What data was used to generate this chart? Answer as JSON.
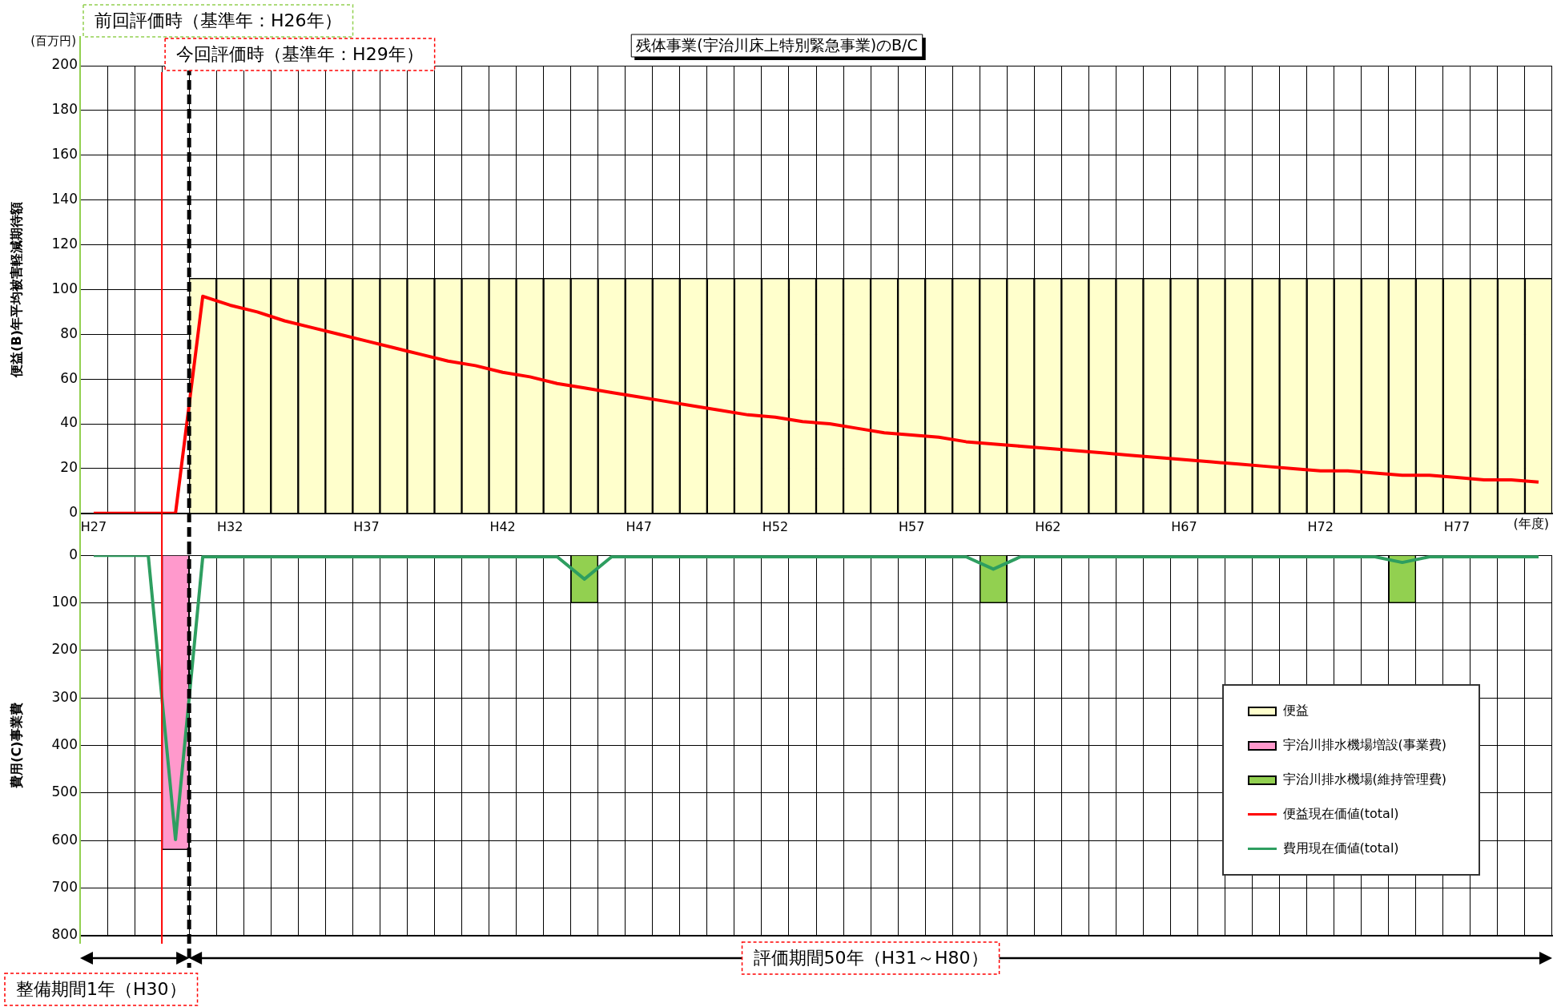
{
  "chart_data": [
    {
      "type": "bar",
      "title": "残体事業(宇治川床上特別緊急事業)のB/C",
      "xlabel": "(年度)",
      "ylabel": "便益(B)年平均被害軽減期待額",
      "annotations": [
        "(百万円)",
        "前回評価時（基準年：H26年）",
        "今回評価時（基準年：H29年）"
      ],
      "categories": [
        "H27",
        null,
        null,
        null,
        null,
        "H32",
        null,
        null,
        null,
        null,
        "H37",
        null,
        null,
        null,
        null,
        "H42",
        null,
        null,
        null,
        null,
        "H47",
        null,
        null,
        null,
        null,
        "H52",
        null,
        null,
        null,
        null,
        "H57",
        null,
        null,
        null,
        null,
        "H62",
        null,
        null,
        null,
        null,
        "H67",
        null,
        null,
        null,
        null,
        "H72",
        null,
        null,
        null,
        null,
        "H77",
        null,
        null,
        null
      ],
      "series": [
        {
          "name": "便益",
          "color": "#ffffcc",
          "values": [
            null,
            null,
            null,
            null,
            105,
            105,
            105,
            105,
            105,
            105,
            105,
            105,
            105,
            105,
            105,
            105,
            105,
            105,
            105,
            105,
            105,
            105,
            105,
            105,
            105,
            105,
            105,
            105,
            105,
            105,
            105,
            105,
            105,
            105,
            105,
            105,
            105,
            105,
            105,
            105,
            105,
            105,
            105,
            105,
            105,
            105,
            105,
            105,
            105,
            105,
            105,
            105,
            105,
            105
          ]
        },
        {
          "name": "便益現在価値(total)",
          "type": "line",
          "color": "#ff0000",
          "values": [
            0,
            0,
            0,
            0,
            97,
            93,
            90,
            86,
            83,
            80,
            77,
            74,
            71,
            68,
            66,
            63,
            61,
            58,
            56,
            54,
            52,
            50,
            48,
            46,
            44,
            43,
            41,
            40,
            38,
            36,
            35,
            34,
            32,
            31,
            30,
            29,
            28,
            27,
            26,
            25,
            24,
            23,
            22,
            21,
            20,
            19,
            19,
            18,
            17,
            17,
            16,
            15,
            15,
            14
          ]
        }
      ],
      "ylim": [
        0,
        200
      ],
      "yticks": [
        0,
        20,
        40,
        60,
        80,
        100,
        120,
        140,
        160,
        180,
        200
      ],
      "grid": true,
      "legend": "bottom right"
    },
    {
      "type": "bar",
      "ylabel": "費用(C)事業費",
      "annotations": [
        "整備期間1年（H30）",
        "評価期間50年（H31～H80）"
      ],
      "categories": [
        null,
        null,
        null,
        null,
        null,
        null,
        null,
        null,
        null,
        null,
        null,
        null,
        null,
        null,
        null,
        null,
        null,
        null,
        null,
        null,
        null,
        null,
        null,
        null,
        null,
        null,
        null,
        null,
        null,
        null,
        null,
        null,
        null,
        null,
        null,
        null,
        null,
        null,
        null,
        null,
        null,
        null,
        null,
        null,
        null,
        null,
        null,
        null,
        null,
        null,
        null,
        null,
        null,
        null
      ],
      "series": [
        {
          "name": "宇治川排水機場増設(事業費)",
          "color": "#ff99cc",
          "values": [
            null,
            null,
            null,
            619,
            null,
            null,
            null,
            null,
            null,
            null,
            null,
            null,
            null,
            null,
            null,
            null,
            null,
            null,
            null,
            null,
            null,
            null,
            null,
            null,
            null,
            null,
            null,
            null,
            null,
            null,
            null,
            null,
            null,
            null,
            null,
            null,
            null,
            null,
            null,
            null,
            null,
            null,
            null,
            null,
            null,
            null,
            null,
            null,
            null,
            null,
            null,
            null,
            null,
            null
          ]
        },
        {
          "name": "宇治川排水機場(維持管理費)",
          "color": "#92d050",
          "values": [
            null,
            null,
            null,
            null,
            null,
            null,
            null,
            null,
            null,
            null,
            null,
            null,
            null,
            null,
            null,
            null,
            null,
            null,
            100,
            null,
            null,
            null,
            null,
            null,
            null,
            null,
            null,
            null,
            null,
            null,
            null,
            null,
            null,
            100,
            null,
            null,
            null,
            null,
            null,
            null,
            null,
            null,
            null,
            null,
            null,
            null,
            null,
            null,
            100,
            null,
            null,
            null,
            null,
            null
          ]
        },
        {
          "name": "費用現在価値(total)",
          "type": "line",
          "color": "#2e9e60",
          "values": [
            0,
            0,
            0,
            598,
            3,
            3,
            3,
            3,
            3,
            3,
            3,
            3,
            3,
            3,
            3,
            3,
            3,
            3,
            50,
            3,
            3,
            3,
            3,
            3,
            3,
            3,
            3,
            3,
            3,
            3,
            3,
            3,
            3,
            29,
            3,
            3,
            3,
            3,
            3,
            3,
            3,
            3,
            3,
            3,
            3,
            3,
            3,
            3,
            15,
            3,
            3,
            3,
            3,
            3
          ]
        }
      ],
      "ylim": [
        800,
        0
      ],
      "yticks": [
        0,
        100,
        200,
        300,
        400,
        500,
        600,
        700,
        800
      ],
      "tick_labels": "y",
      "grid": true,
      "legend": "bottom right"
    }
  ]
}
